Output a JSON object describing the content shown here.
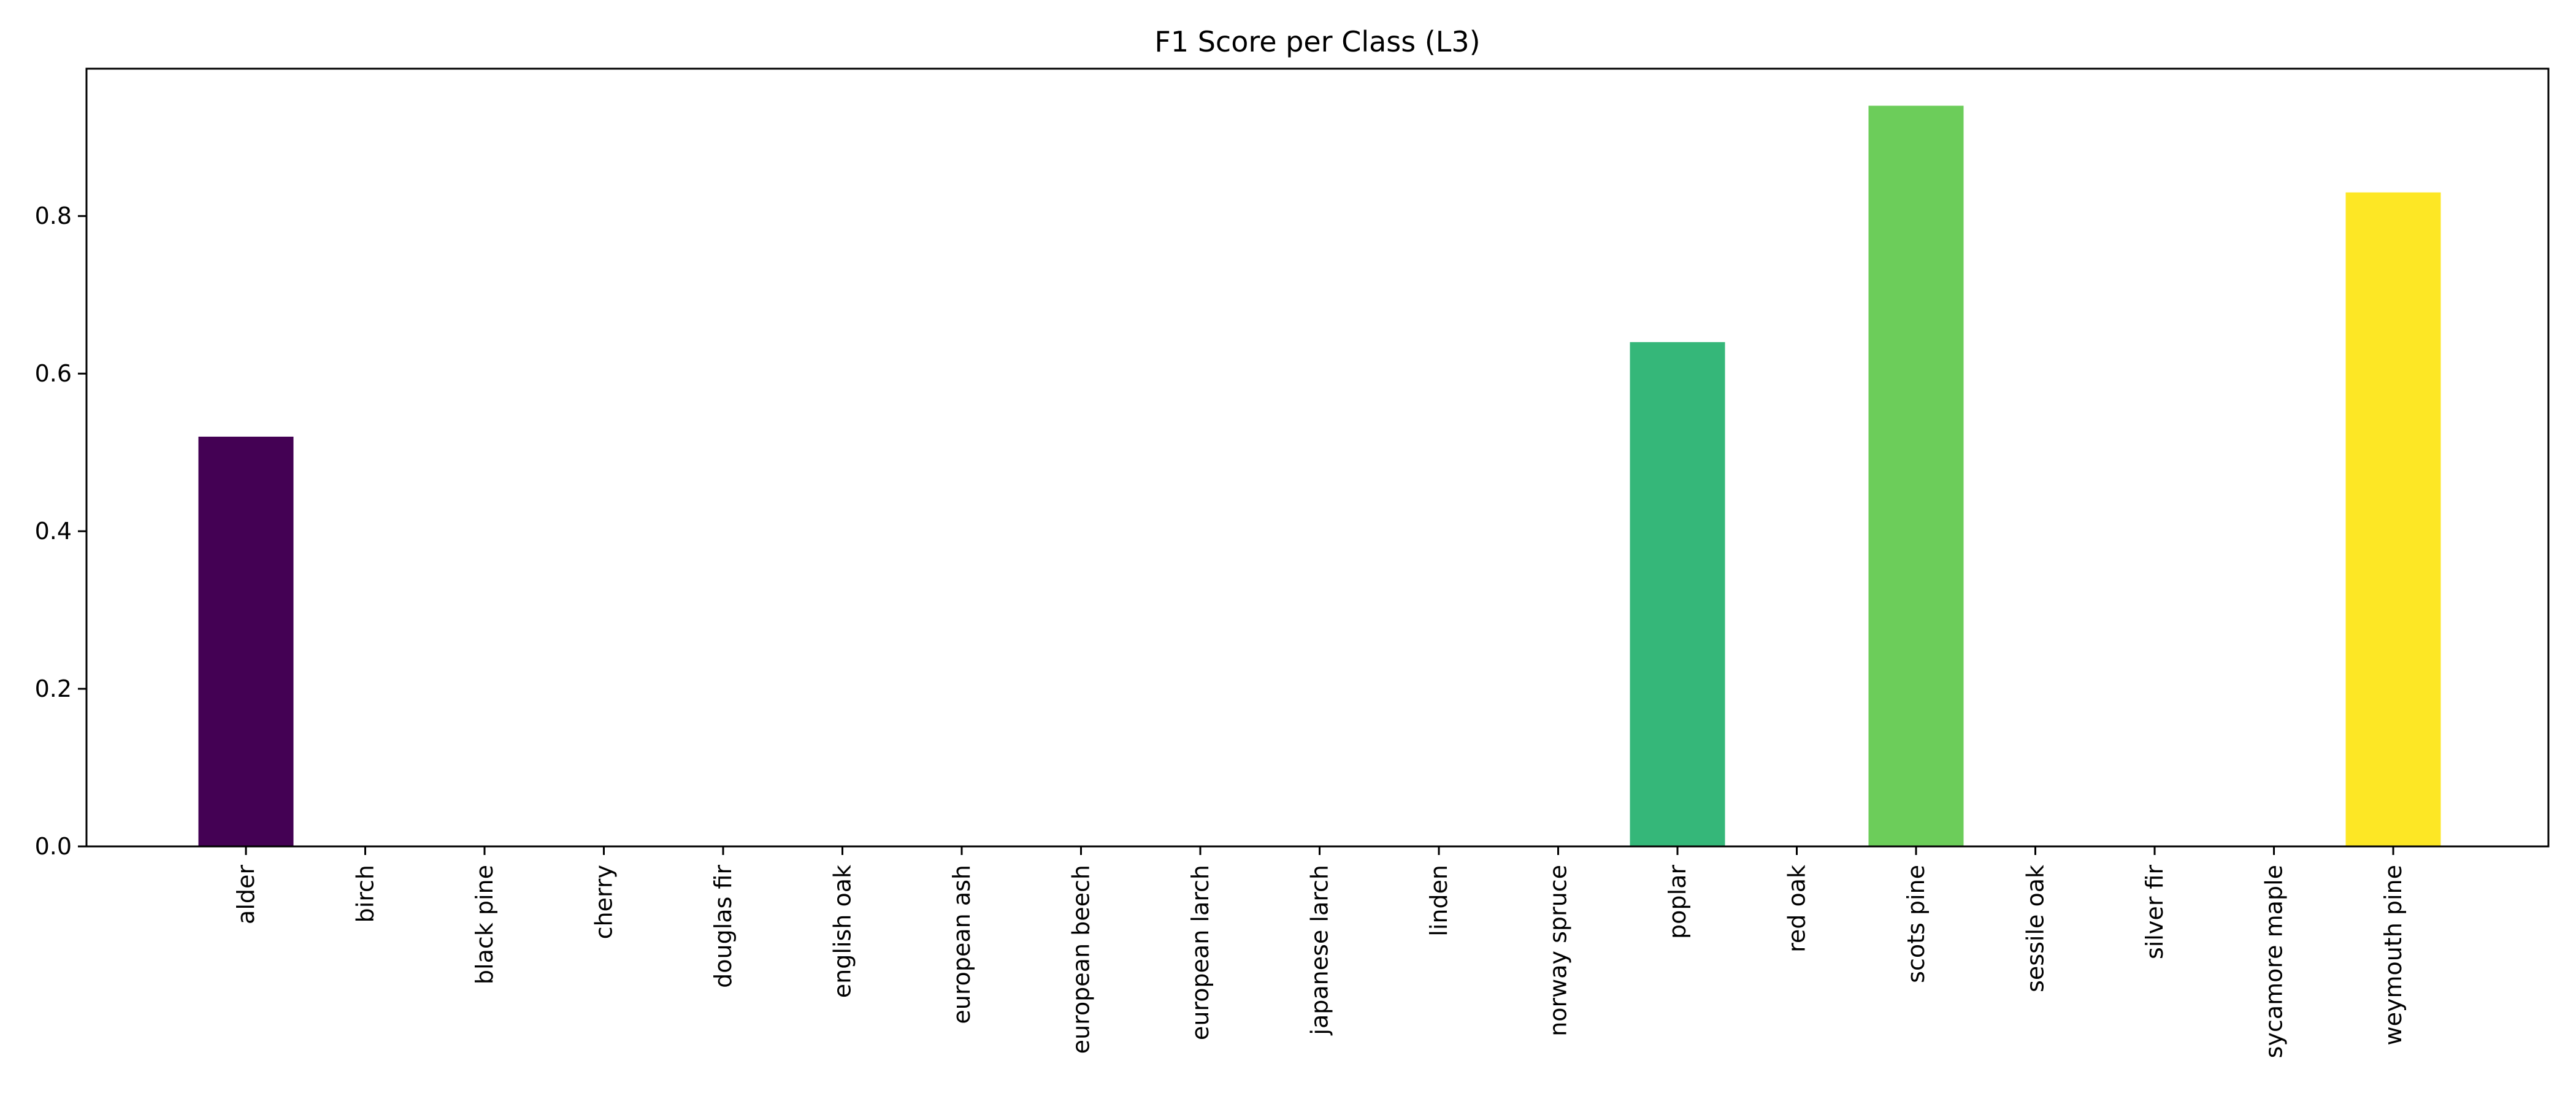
{
  "chart_data": {
    "type": "bar",
    "title": "F1 Score per Class (L3)",
    "xlabel": "",
    "ylabel": "",
    "categories": [
      "alder",
      "birch",
      "black pine",
      "cherry",
      "douglas fir",
      "english oak",
      "european ash",
      "european beech",
      "european larch",
      "japanese larch",
      "linden",
      "norway spruce",
      "poplar",
      "red oak",
      "scots pine",
      "sessile oak",
      "silver fir",
      "sycamore maple",
      "weymouth pine"
    ],
    "values": [
      0.52,
      0,
      0,
      0,
      0,
      0,
      0,
      0,
      0,
      0,
      0,
      0,
      0.64,
      0,
      0.94,
      0,
      0,
      0,
      0.83
    ],
    "colors": [
      "#440154",
      "#48186a",
      "#472d7b",
      "#424086",
      "#3b528b",
      "#33638d",
      "#2c728e",
      "#26828e",
      "#21918c",
      "#1fa088",
      "#28ae80",
      "#3fbc73",
      "#35b779",
      "#84d44b",
      "#6ccd5a",
      "#a5db36",
      "#c8e020",
      "#e2e418",
      "#fde725"
    ],
    "ylim": [
      0,
      0.987
    ],
    "yticks": [
      "0.0",
      "0.2",
      "0.4",
      "0.6",
      "0.8"
    ],
    "ytick_values": [
      0.0,
      0.2,
      0.4,
      0.6,
      0.8
    ],
    "grid": false,
    "legend": "none"
  }
}
